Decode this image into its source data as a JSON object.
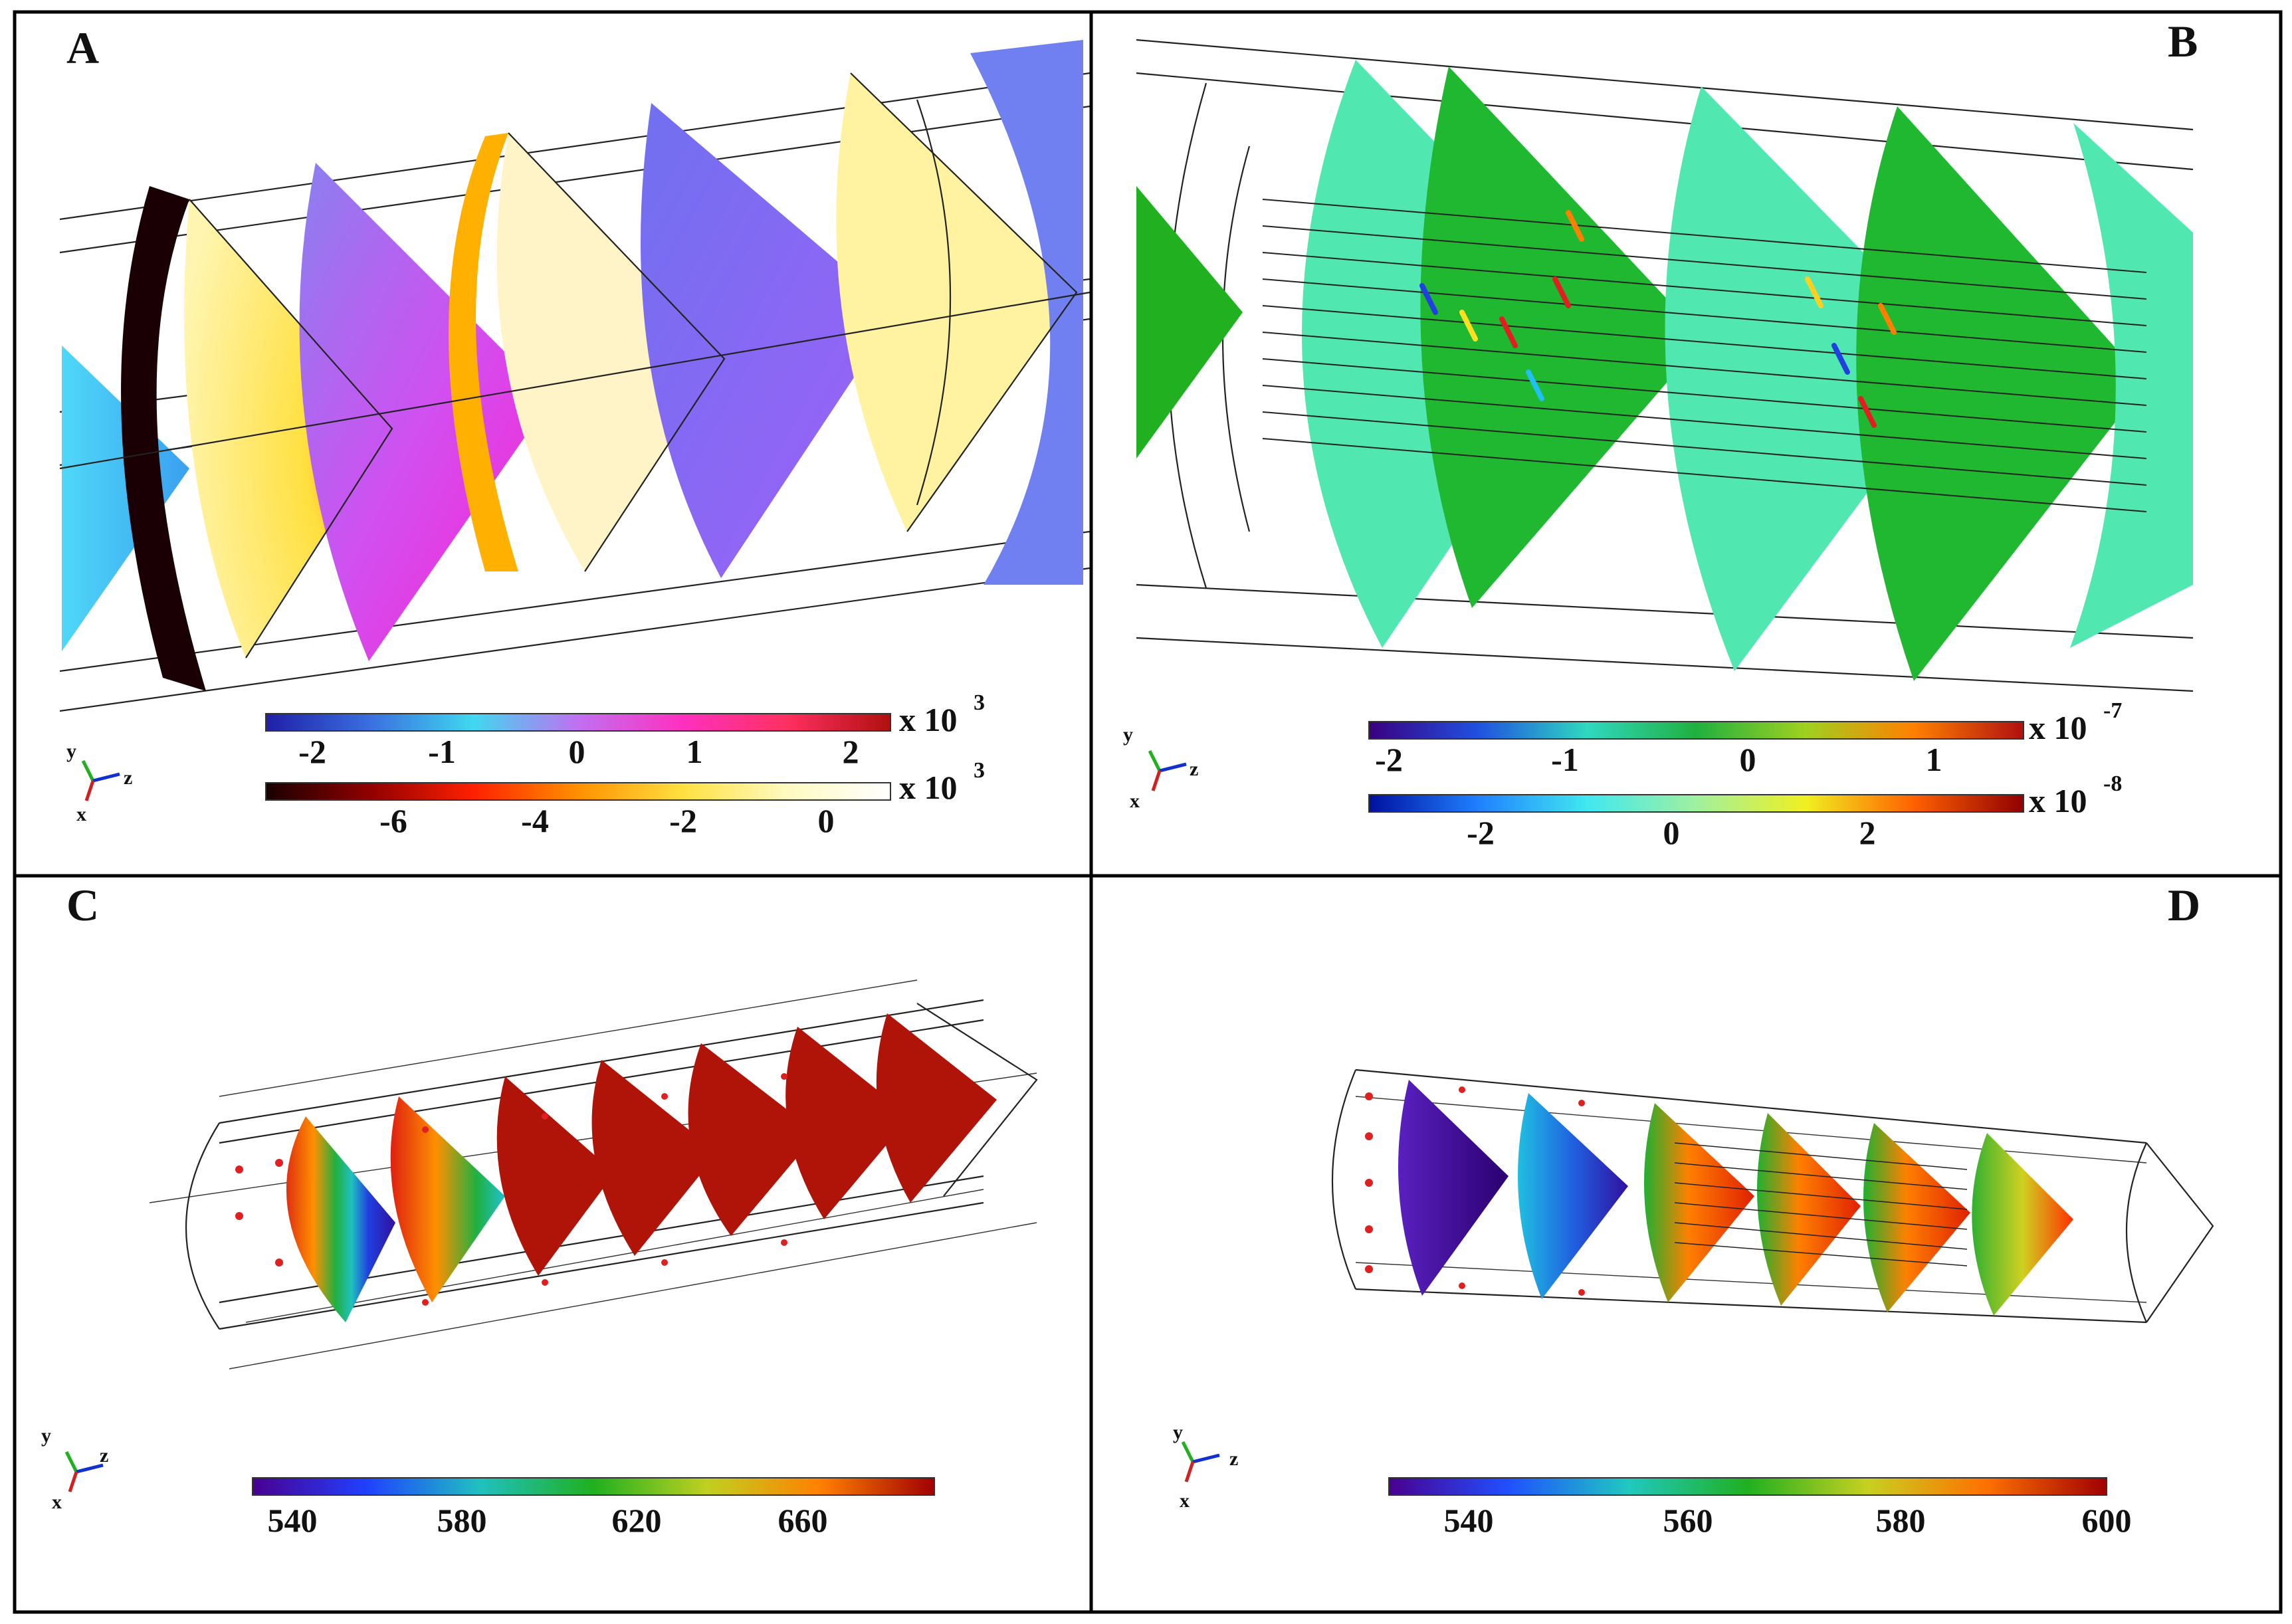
{
  "panels": [
    {
      "letter": "A",
      "colorbars": [
        {
          "ticks": [
            "-2",
            "-1",
            "0",
            "1",
            "2"
          ],
          "multiplier_base": "x 10",
          "multiplier_exp": "3",
          "colors": [
            "#1f1fa8",
            "#3a6fe0",
            "#40d8f0",
            "#c070f0",
            "#ff30c0",
            "#ff3060",
            "#b01010"
          ]
        },
        {
          "ticks": [
            "-6",
            "-4",
            "-2",
            "0"
          ],
          "multiplier_base": "x 10",
          "multiplier_exp": "3",
          "colors": [
            "#1a0000",
            "#900000",
            "#ff2000",
            "#ff9000",
            "#ffe040",
            "#fffac0",
            "#ffffff"
          ]
        }
      ],
      "axes": {
        "y": "y",
        "z": "z",
        "x": "x"
      }
    },
    {
      "letter": "B",
      "colorbars": [
        {
          "ticks": [
            "-2",
            "-1",
            "0",
            "1"
          ],
          "multiplier_base": "x 10",
          "multiplier_exp": "-7",
          "colors": [
            "#3a0080",
            "#2050e0",
            "#30d8c0",
            "#20b040",
            "#a0d020",
            "#ff8000",
            "#b01010"
          ]
        },
        {
          "ticks": [
            "-2",
            "0",
            "2"
          ],
          "multiplier_base": "x 10",
          "multiplier_exp": "-8",
          "colors": [
            "#0010a0",
            "#2080ff",
            "#40e8f0",
            "#a0f0a0",
            "#f0f020",
            "#ff6000",
            "#900000"
          ]
        }
      ],
      "axes": {
        "y": "y",
        "z": "z",
        "x": "x"
      }
    },
    {
      "letter": "C",
      "colorbars": [
        {
          "ticks": [
            "540",
            "580",
            "620",
            "660"
          ],
          "multiplier_base": "",
          "multiplier_exp": "",
          "colors": [
            "#4a0090",
            "#2040ff",
            "#20c0c0",
            "#20b020",
            "#c0d020",
            "#ff8000",
            "#a00000"
          ]
        }
      ],
      "axes": {
        "y": "y",
        "z": "z",
        "x": "x"
      }
    },
    {
      "letter": "D",
      "colorbars": [
        {
          "ticks": [
            "540",
            "560",
            "580",
            "600"
          ],
          "multiplier_base": "",
          "multiplier_exp": "",
          "colors": [
            "#4a0090",
            "#2050ff",
            "#20c8c0",
            "#20b020",
            "#c8d020",
            "#ff7000",
            "#a00000"
          ]
        }
      ],
      "axes": {
        "y": "y",
        "z": "z",
        "x": "x"
      }
    }
  ]
}
